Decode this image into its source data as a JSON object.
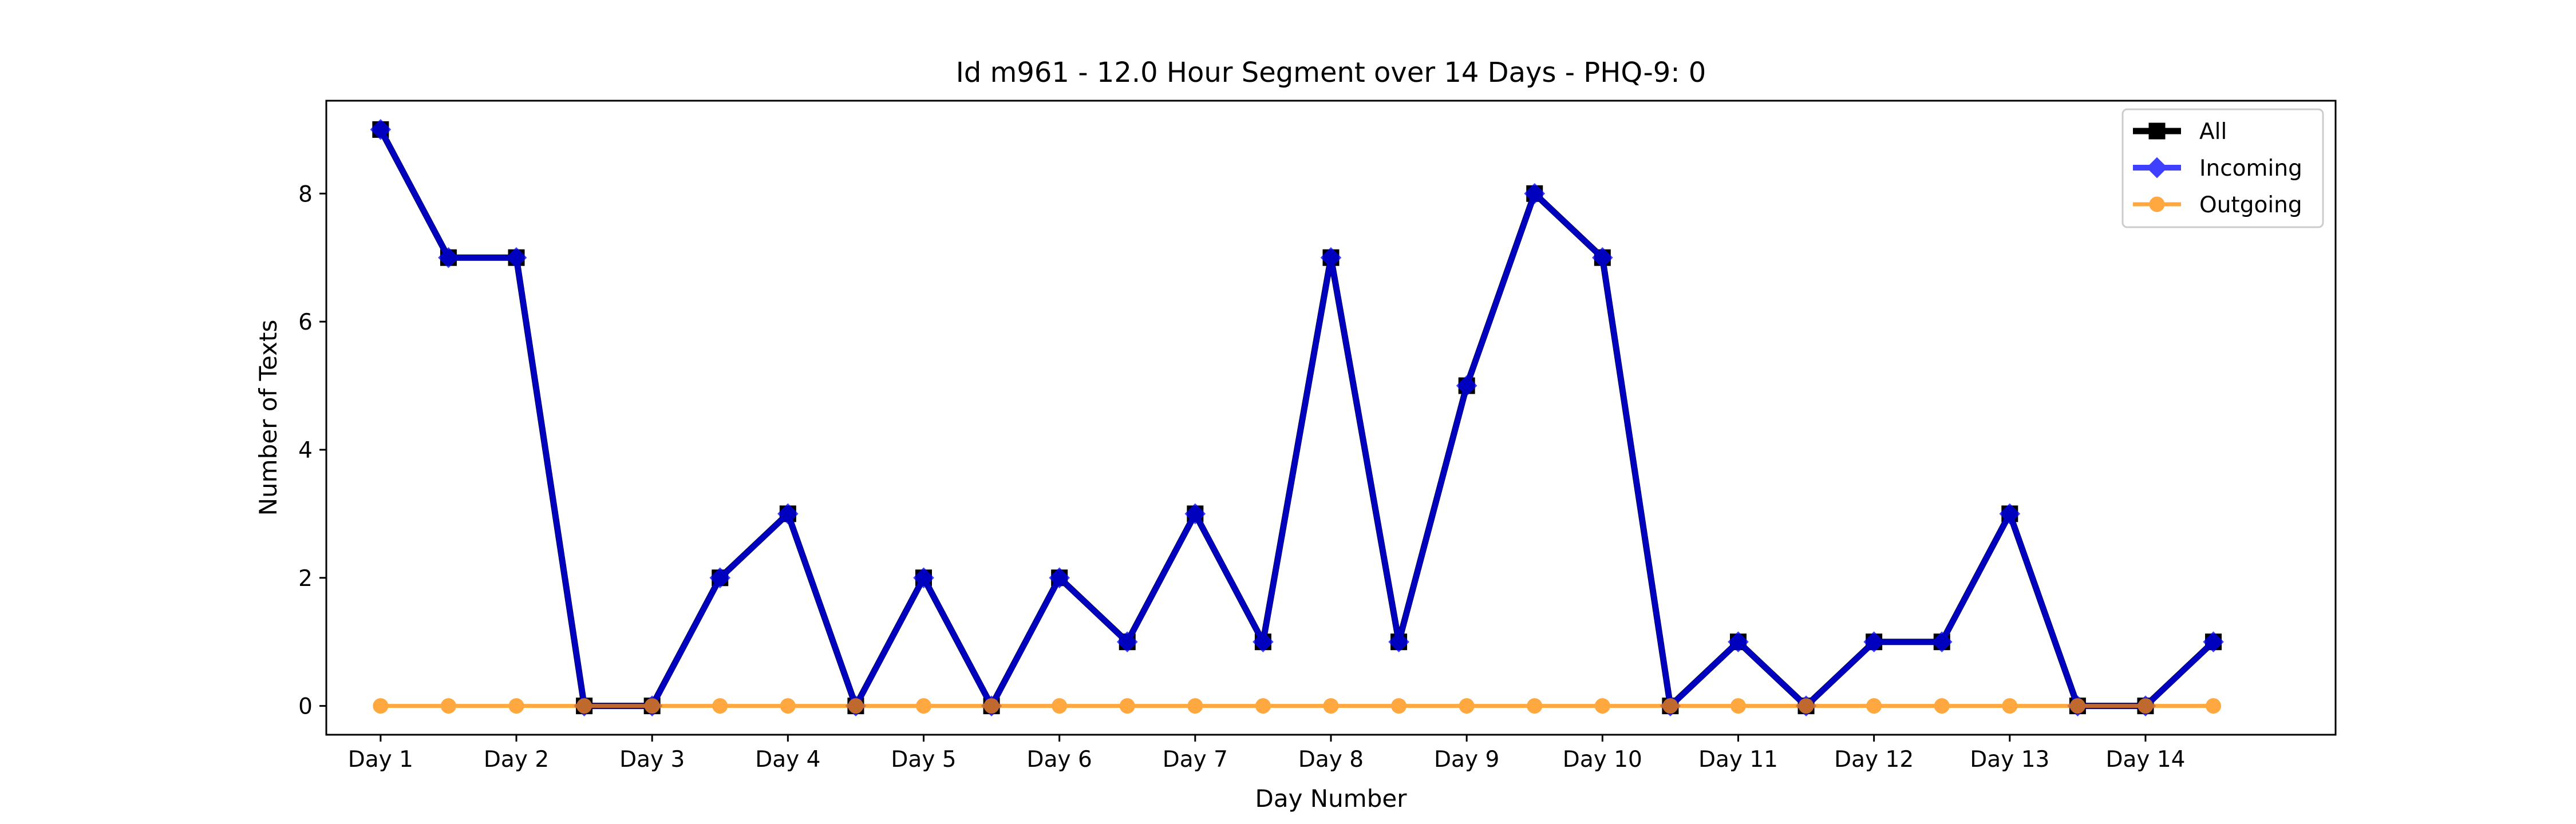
{
  "chart_data": {
    "type": "line",
    "title": "Id m961 - 12.0 Hour Segment over 14 Days - PHQ-9: 0",
    "xlabel": "Day Number",
    "ylabel": "Number of Texts",
    "ylim": [
      -0.45,
      9.45
    ],
    "yticks": [
      0,
      2,
      4,
      6,
      8
    ],
    "xlim": [
      -0.8,
      28.8
    ],
    "x": [
      0,
      1,
      2,
      3,
      4,
      5,
      6,
      7,
      8,
      9,
      10,
      11,
      12,
      13,
      14,
      15,
      16,
      17,
      18,
      19,
      20,
      21,
      22,
      23,
      24,
      25,
      26,
      27
    ],
    "xtick_positions": [
      0,
      2,
      4,
      6,
      8,
      10,
      12,
      14,
      16,
      18,
      20,
      22,
      24,
      26
    ],
    "xtick_labels": [
      "Day 1",
      "Day 2",
      "Day 3",
      "Day 4",
      "Day 5",
      "Day 6",
      "Day 7",
      "Day 8",
      "Day 9",
      "Day 10",
      "Day 11",
      "Day 12",
      "Day 13",
      "Day 14"
    ],
    "grid": false,
    "legend_position": "top-right",
    "series": [
      {
        "name": "All",
        "color": "#000000",
        "marker": "square",
        "values": [
          9,
          7,
          7,
          0,
          0,
          2,
          3,
          0,
          2,
          0,
          2,
          1,
          3,
          1,
          7,
          1,
          5,
          8,
          7,
          0,
          1,
          0,
          1,
          1,
          3,
          0,
          0,
          1
        ]
      },
      {
        "name": "Incoming",
        "color": "#0000ff",
        "marker": "diamond",
        "values": [
          9,
          7,
          7,
          0,
          0,
          2,
          3,
          0,
          2,
          0,
          2,
          1,
          3,
          1,
          7,
          1,
          5,
          8,
          7,
          0,
          1,
          0,
          1,
          1,
          3,
          0,
          0,
          1
        ]
      },
      {
        "name": "Outgoing",
        "color": "#ff8c00",
        "marker": "circle",
        "values": [
          0,
          0,
          0,
          0,
          0,
          0,
          0,
          0,
          0,
          0,
          0,
          0,
          0,
          0,
          0,
          0,
          0,
          0,
          0,
          0,
          0,
          0,
          0,
          0,
          0,
          0,
          0,
          0
        ]
      }
    ]
  }
}
